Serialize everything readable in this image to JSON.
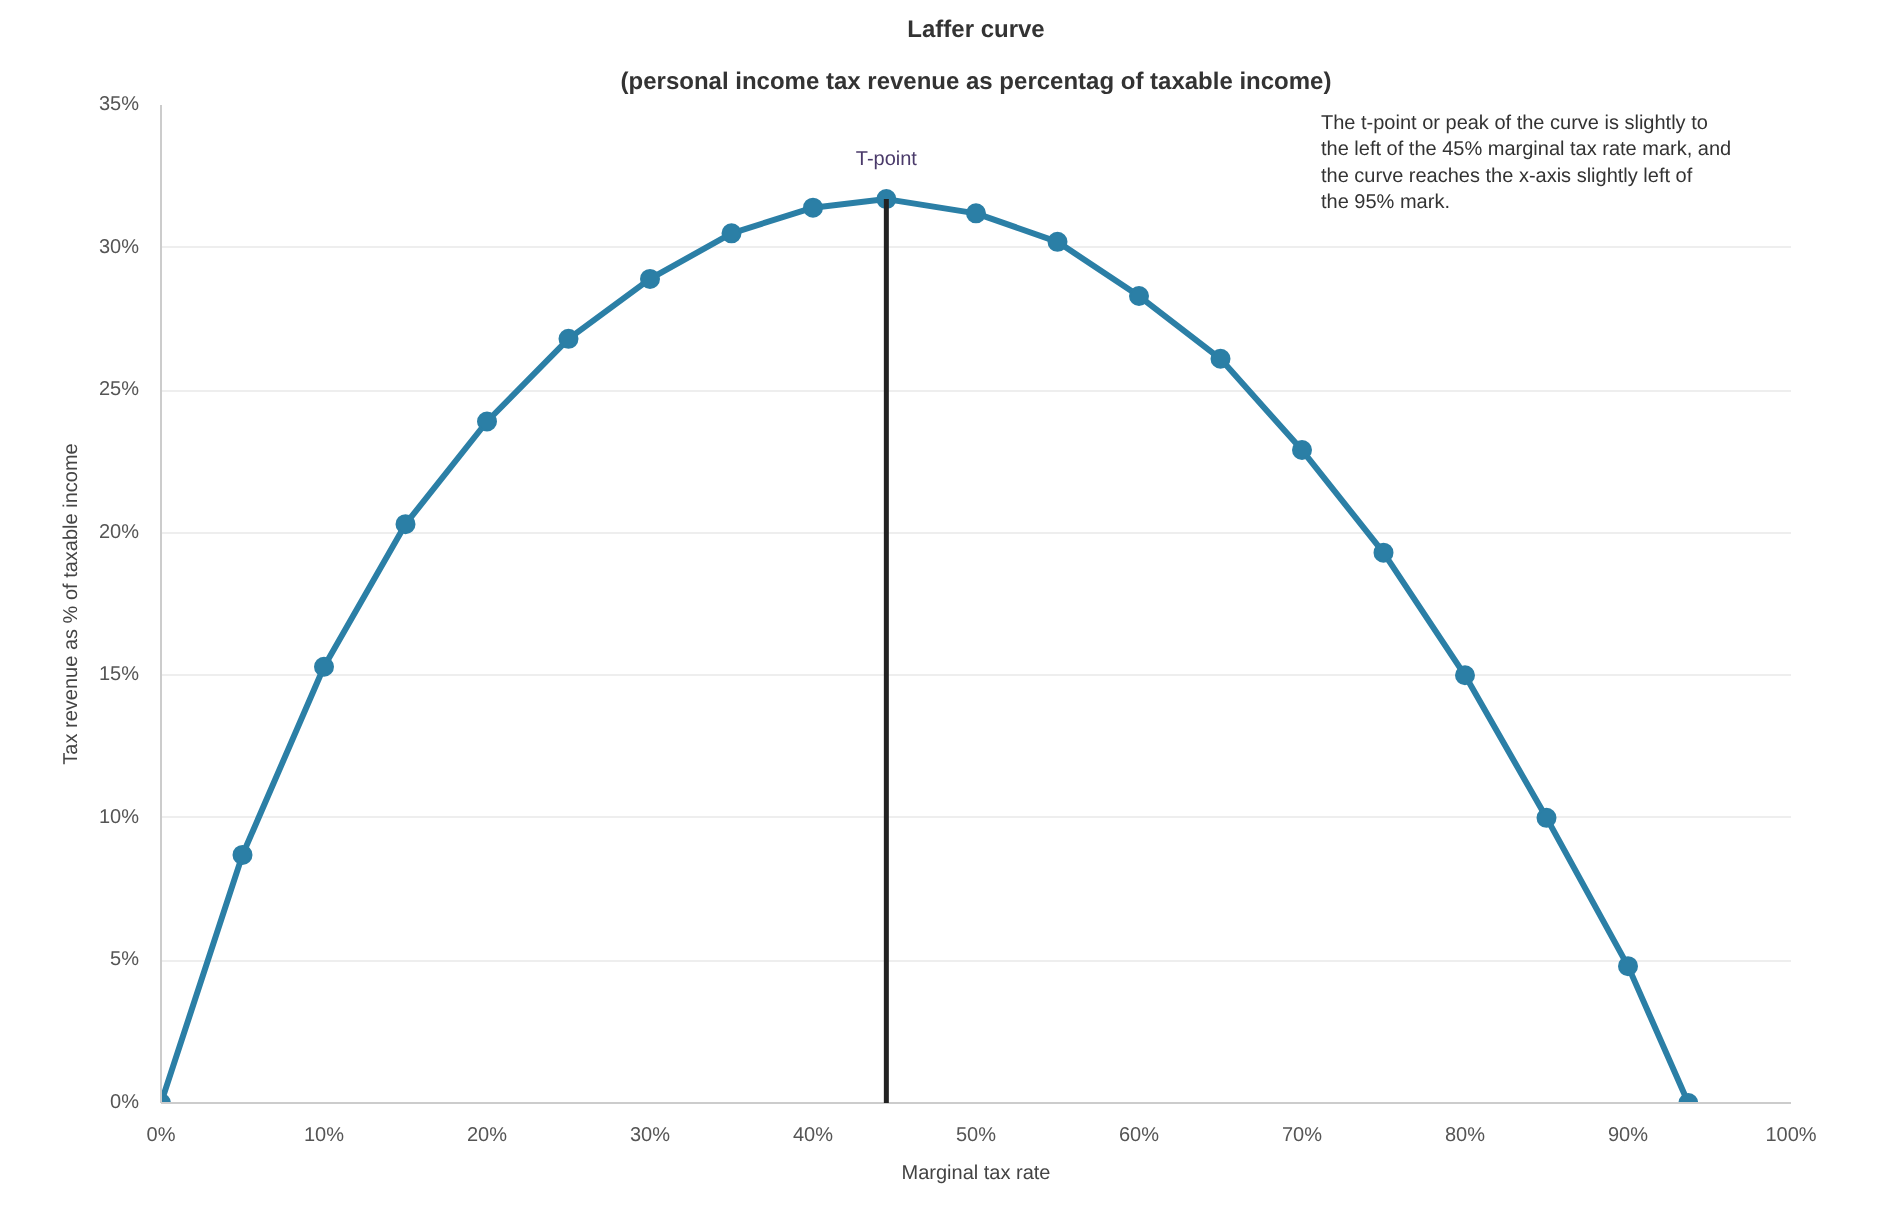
{
  "chart_data": {
    "type": "line",
    "title": "Laffer curve",
    "subtitle": "(personal income tax revenue as percentag of taxable income)",
    "xlabel": "Marginal tax rate",
    "ylabel": "Tax revenue as % of taxable income",
    "series": [
      {
        "color": "#2b7fa6",
        "x": [
          0,
          5,
          10,
          15,
          20,
          25,
          30,
          35,
          40,
          44.5,
          50,
          55,
          60,
          65,
          70,
          75,
          80,
          85,
          90,
          93.7
        ],
        "values": [
          0,
          8.7,
          15.3,
          20.3,
          23.9,
          26.8,
          28.9,
          30.5,
          31.4,
          31.7,
          31.2,
          30.2,
          28.3,
          26.1,
          22.9,
          19.3,
          15.0,
          10.0,
          4.8,
          0
        ]
      }
    ],
    "xlim": [
      0,
      100
    ],
    "ylim": [
      0,
      35
    ],
    "xticks": [
      {
        "value": 0,
        "label": "0%"
      },
      {
        "value": 10,
        "label": "10%"
      },
      {
        "value": 20,
        "label": "20%"
      },
      {
        "value": 30,
        "label": "30%"
      },
      {
        "value": 40,
        "label": "40%"
      },
      {
        "value": 50,
        "label": "50%"
      },
      {
        "value": 60,
        "label": "60%"
      },
      {
        "value": 70,
        "label": "70%"
      },
      {
        "value": 80,
        "label": "80%"
      },
      {
        "value": 90,
        "label": "90%"
      },
      {
        "value": 100,
        "label": "100%"
      }
    ],
    "yticks": [
      {
        "value": 0,
        "label": "0%"
      },
      {
        "value": 5,
        "label": "5%"
      },
      {
        "value": 10,
        "label": "10%"
      },
      {
        "value": 15,
        "label": "15%"
      },
      {
        "value": 20,
        "label": "20%"
      },
      {
        "value": 25,
        "label": "25%"
      },
      {
        "value": 30,
        "label": "30%"
      },
      {
        "value": 35,
        "label": "35%"
      }
    ],
    "grid": "y",
    "marker": "circle",
    "line_style": "solid",
    "ref_lines": [
      {
        "axis": "x",
        "value": 44.5,
        "label": "T-point",
        "color": "#222222"
      }
    ],
    "annotations": [
      "The t-point or peak of the curve is slightly to the left of the 45% marginal tax rate mark, and the curve reaches the x-axis slightly left of the 95% mark."
    ]
  }
}
